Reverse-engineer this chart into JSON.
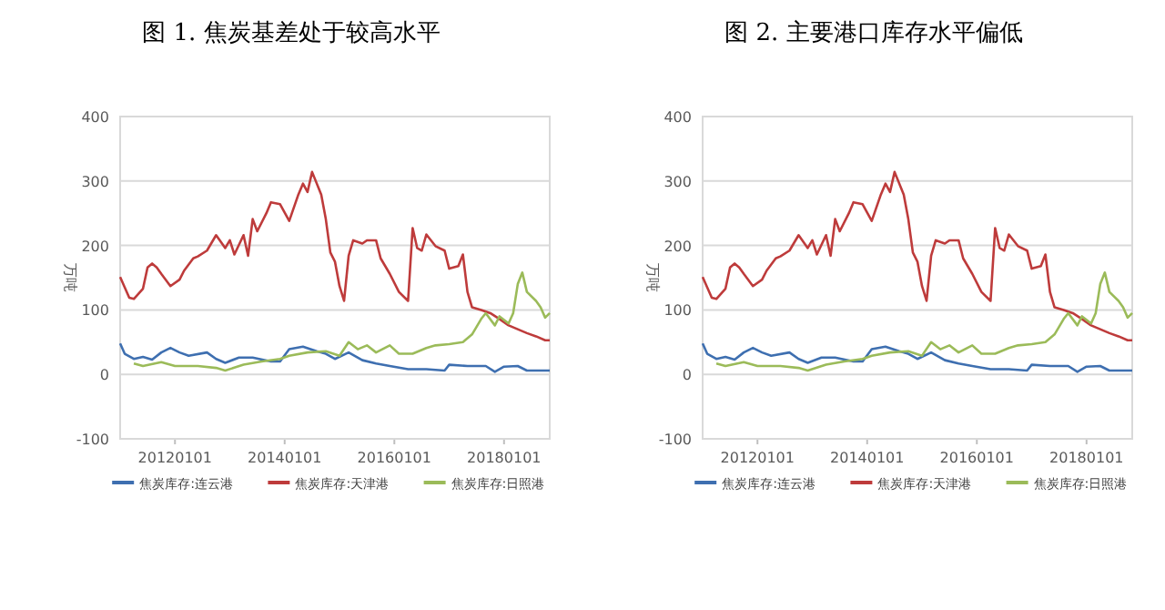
{
  "chart_data": [
    {
      "type": "line",
      "title": "图 1. 焦炭基差处于较高水平",
      "ylabel": "万吨",
      "xlim": [
        "2011-01-01",
        "2018-11-01"
      ],
      "xticks": [
        {
          "value": "2012-01-01",
          "label": "20120101"
        },
        {
          "value": "2014-01-01",
          "label": "20140101"
        },
        {
          "value": "2016-01-01",
          "label": "20160101"
        },
        {
          "value": "2018-01-01",
          "label": "20180101"
        }
      ],
      "ylim": [
        -100,
        400
      ],
      "yticks": [
        -100,
        0,
        100,
        200,
        300,
        400
      ],
      "grid": "y",
      "legend": "bottom",
      "series": [
        {
          "name": "焦炭库存:连云港",
          "color": "#3e6fb0",
          "x": [
            "2011-01",
            "2011-02",
            "2011-04",
            "2011-06",
            "2011-08",
            "2011-10",
            "2011-12",
            "2012-02",
            "2012-04",
            "2012-08",
            "2012-10",
            "2012-12",
            "2013-03",
            "2013-06",
            "2013-10",
            "2013-12",
            "2014-02",
            "2014-05",
            "2014-08",
            "2014-10",
            "2014-12",
            "2015-03",
            "2015-06",
            "2015-09",
            "2015-12",
            "2016-04",
            "2016-08",
            "2016-12",
            "2017-01",
            "2017-05",
            "2017-09",
            "2017-11",
            "2018-01",
            "2018-04",
            "2018-06",
            "2018-11"
          ],
          "values": [
            48,
            32,
            24,
            27,
            23,
            34,
            41,
            34,
            29,
            34,
            24,
            18,
            26,
            26,
            20,
            20,
            39,
            43,
            36,
            32,
            24,
            34,
            22,
            17,
            13,
            8,
            8,
            6,
            15,
            13,
            13,
            4,
            12,
            13,
            6,
            6
          ]
        },
        {
          "name": "焦炭库存:天津港",
          "color": "#be3b3b",
          "x": [
            "2011-01",
            "2011-03",
            "2011-04",
            "2011-06",
            "2011-07",
            "2011-08",
            "2011-09",
            "2011-10",
            "2011-12",
            "2012-02",
            "2012-03",
            "2012-05",
            "2012-06",
            "2012-08",
            "2012-10",
            "2012-12",
            "2013-01",
            "2013-02",
            "2013-04",
            "2013-05",
            "2013-06",
            "2013-07",
            "2013-09",
            "2013-10",
            "2013-12",
            "2014-02",
            "2014-04",
            "2014-05",
            "2014-06",
            "2014-07",
            "2014-09",
            "2014-10",
            "2014-11",
            "2014-12",
            "2015-01",
            "2015-02",
            "2015-03",
            "2015-04",
            "2015-06",
            "2015-07",
            "2015-09",
            "2015-10",
            "2015-12",
            "2016-02",
            "2016-04",
            "2016-05",
            "2016-06",
            "2016-07",
            "2016-08",
            "2016-10",
            "2016-12",
            "2017-01",
            "2017-03",
            "2017-04",
            "2017-05",
            "2017-06",
            "2017-08",
            "2017-10",
            "2017-12",
            "2018-02",
            "2018-04",
            "2018-06",
            "2018-08",
            "2018-10",
            "2018-11"
          ],
          "values": [
            151,
            119,
            117,
            133,
            166,
            172,
            166,
            156,
            137,
            147,
            161,
            180,
            183,
            192,
            216,
            196,
            208,
            186,
            216,
            184,
            241,
            222,
            250,
            267,
            264,
            238,
            279,
            296,
            283,
            314,
            279,
            241,
            189,
            175,
            137,
            114,
            184,
            208,
            203,
            208,
            208,
            180,
            156,
            128,
            114,
            227,
            196,
            192,
            217,
            199,
            192,
            164,
            168,
            186,
            128,
            104,
            100,
            95,
            86,
            76,
            70,
            64,
            59,
            53,
            53
          ]
        },
        {
          "name": "焦炭库存:日照港",
          "color": "#9bbb59",
          "x": [
            "2011-04",
            "2011-06",
            "2011-10",
            "2012-01",
            "2012-06",
            "2012-10",
            "2012-12",
            "2013-04",
            "2013-08",
            "2013-12",
            "2014-02",
            "2014-06",
            "2014-10",
            "2015-01",
            "2015-03",
            "2015-05",
            "2015-07",
            "2015-09",
            "2015-12",
            "2016-02",
            "2016-05",
            "2016-08",
            "2016-10",
            "2017-01",
            "2017-04",
            "2017-06",
            "2017-08",
            "2017-09",
            "2017-11",
            "2017-12",
            "2018-02",
            "2018-03",
            "2018-04",
            "2018-05",
            "2018-06",
            "2018-08",
            "2018-09",
            "2018-10",
            "2018-11"
          ],
          "values": [
            17,
            13,
            19,
            13,
            13,
            10,
            6,
            15,
            20,
            24,
            29,
            34,
            36,
            29,
            50,
            39,
            45,
            34,
            45,
            32,
            32,
            41,
            45,
            47,
            50,
            62,
            86,
            95,
            76,
            90,
            79,
            95,
            140,
            158,
            128,
            114,
            104,
            88,
            95
          ]
        }
      ]
    },
    {
      "type": "line",
      "title": "图 2. 主要港口库存水平偏低",
      "ylabel": "万吨",
      "xlim": [
        "2011-01-01",
        "2018-11-01"
      ],
      "xticks": [
        {
          "value": "2012-01-01",
          "label": "20120101"
        },
        {
          "value": "2014-01-01",
          "label": "20140101"
        },
        {
          "value": "2016-01-01",
          "label": "20160101"
        },
        {
          "value": "2018-01-01",
          "label": "20180101"
        }
      ],
      "ylim": [
        -100,
        400
      ],
      "yticks": [
        -100,
        0,
        100,
        200,
        300,
        400
      ],
      "grid": "y",
      "legend": "bottom",
      "series": [
        {
          "name": "焦炭库存:连云港",
          "color": "#3e6fb0",
          "x": [
            "2011-01",
            "2011-02",
            "2011-04",
            "2011-06",
            "2011-08",
            "2011-10",
            "2011-12",
            "2012-02",
            "2012-04",
            "2012-08",
            "2012-10",
            "2012-12",
            "2013-03",
            "2013-06",
            "2013-10",
            "2013-12",
            "2014-02",
            "2014-05",
            "2014-08",
            "2014-10",
            "2014-12",
            "2015-03",
            "2015-06",
            "2015-09",
            "2015-12",
            "2016-04",
            "2016-08",
            "2016-12",
            "2017-01",
            "2017-05",
            "2017-09",
            "2017-11",
            "2018-01",
            "2018-04",
            "2018-06",
            "2018-11"
          ],
          "values": [
            48,
            32,
            24,
            27,
            23,
            34,
            41,
            34,
            29,
            34,
            24,
            18,
            26,
            26,
            20,
            20,
            39,
            43,
            36,
            32,
            24,
            34,
            22,
            17,
            13,
            8,
            8,
            6,
            15,
            13,
            13,
            4,
            12,
            13,
            6,
            6
          ]
        },
        {
          "name": "焦炭库存:天津港",
          "color": "#be3b3b",
          "x": [
            "2011-01",
            "2011-03",
            "2011-04",
            "2011-06",
            "2011-07",
            "2011-08",
            "2011-09",
            "2011-10",
            "2011-12",
            "2012-02",
            "2012-03",
            "2012-05",
            "2012-06",
            "2012-08",
            "2012-10",
            "2012-12",
            "2013-01",
            "2013-02",
            "2013-04",
            "2013-05",
            "2013-06",
            "2013-07",
            "2013-09",
            "2013-10",
            "2013-12",
            "2014-02",
            "2014-04",
            "2014-05",
            "2014-06",
            "2014-07",
            "2014-09",
            "2014-10",
            "2014-11",
            "2014-12",
            "2015-01",
            "2015-02",
            "2015-03",
            "2015-04",
            "2015-06",
            "2015-07",
            "2015-09",
            "2015-10",
            "2015-12",
            "2016-02",
            "2016-04",
            "2016-05",
            "2016-06",
            "2016-07",
            "2016-08",
            "2016-10",
            "2016-12",
            "2017-01",
            "2017-03",
            "2017-04",
            "2017-05",
            "2017-06",
            "2017-08",
            "2017-10",
            "2017-12",
            "2018-02",
            "2018-04",
            "2018-06",
            "2018-08",
            "2018-10",
            "2018-11"
          ],
          "values": [
            151,
            119,
            117,
            133,
            166,
            172,
            166,
            156,
            137,
            147,
            161,
            180,
            183,
            192,
            216,
            196,
            208,
            186,
            216,
            184,
            241,
            222,
            250,
            267,
            264,
            238,
            279,
            296,
            283,
            314,
            279,
            241,
            189,
            175,
            137,
            114,
            184,
            208,
            203,
            208,
            208,
            180,
            156,
            128,
            114,
            227,
            196,
            192,
            217,
            199,
            192,
            164,
            168,
            186,
            128,
            104,
            100,
            95,
            86,
            76,
            70,
            64,
            59,
            53,
            53
          ]
        },
        {
          "name": "焦炭库存:日照港",
          "color": "#9bbb59",
          "x": [
            "2011-04",
            "2011-06",
            "2011-10",
            "2012-01",
            "2012-06",
            "2012-10",
            "2012-12",
            "2013-04",
            "2013-08",
            "2013-12",
            "2014-02",
            "2014-06",
            "2014-10",
            "2015-01",
            "2015-03",
            "2015-05",
            "2015-07",
            "2015-09",
            "2015-12",
            "2016-02",
            "2016-05",
            "2016-08",
            "2016-10",
            "2017-01",
            "2017-04",
            "2017-06",
            "2017-08",
            "2017-09",
            "2017-11",
            "2017-12",
            "2018-02",
            "2018-03",
            "2018-04",
            "2018-05",
            "2018-06",
            "2018-08",
            "2018-09",
            "2018-10",
            "2018-11"
          ],
          "values": [
            17,
            13,
            19,
            13,
            13,
            10,
            6,
            15,
            20,
            24,
            29,
            34,
            36,
            29,
            50,
            39,
            45,
            34,
            45,
            32,
            32,
            41,
            45,
            47,
            50,
            62,
            86,
            95,
            76,
            90,
            79,
            95,
            140,
            158,
            128,
            114,
            104,
            88,
            95
          ]
        }
      ]
    }
  ]
}
